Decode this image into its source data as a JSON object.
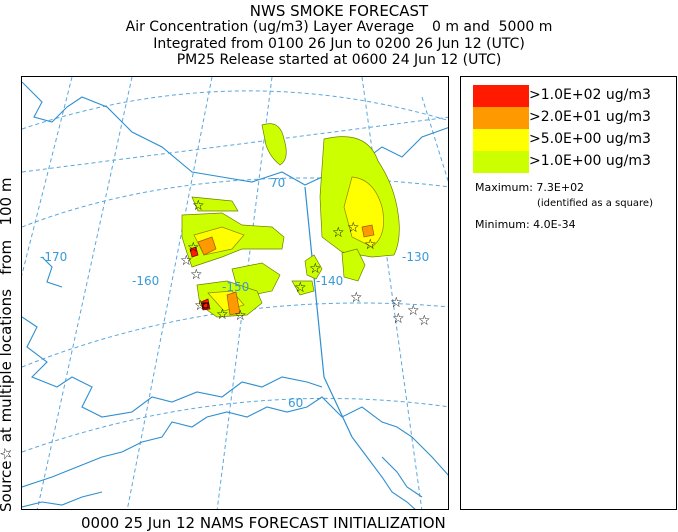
{
  "title": {
    "line1": "NWS SMOKE FORECAST",
    "line2": "Air Concentration (ug/m3) Layer Average    0 m and  5000 m",
    "line3": "Integrated from 0100 26 Jun to 0200 26 Jun 12 (UTC)",
    "line4": "PM25 Release started at 0600 24 Jun 12 (UTC)"
  },
  "side_label": "Source☆ at multiple locations   from   100 m",
  "footer": "0000 25 Jun 12 NAMS FORECAST INITIALIZATION",
  "legend": {
    "items": [
      {
        "label": ">1.0E+02 ug/m3",
        "color": "#ff1a00"
      },
      {
        "label": ">2.0E+01 ug/m3",
        "color": "#ff9900"
      },
      {
        "label": ">5.0E+00 ug/m3",
        "color": "#ffff00"
      },
      {
        "label": ">1.0E+00 ug/m3",
        "color": "#ccff00"
      }
    ],
    "maximum": "Maximum: 7.3E+02",
    "maximum_note": "(identified as a square)",
    "minimum": "Minimum: 4.0E-34"
  },
  "map": {
    "graticule_labels": {
      "lon_170": "-170",
      "lon_160": "-160",
      "lon_150": "-150",
      "lon_140": "-140",
      "lon_130": "-130",
      "lat_70": "70",
      "lat_60": "60"
    },
    "colors": {
      "graticule": "#5aa7dd",
      "coastline": "#2e8fd0",
      "contour_low": "#ccff00",
      "contour_mid": "#ffff00",
      "contour_high": "#ff9900",
      "contour_max": "#ff1a00"
    },
    "icons": [
      "star-icon",
      "square-marker"
    ]
  }
}
